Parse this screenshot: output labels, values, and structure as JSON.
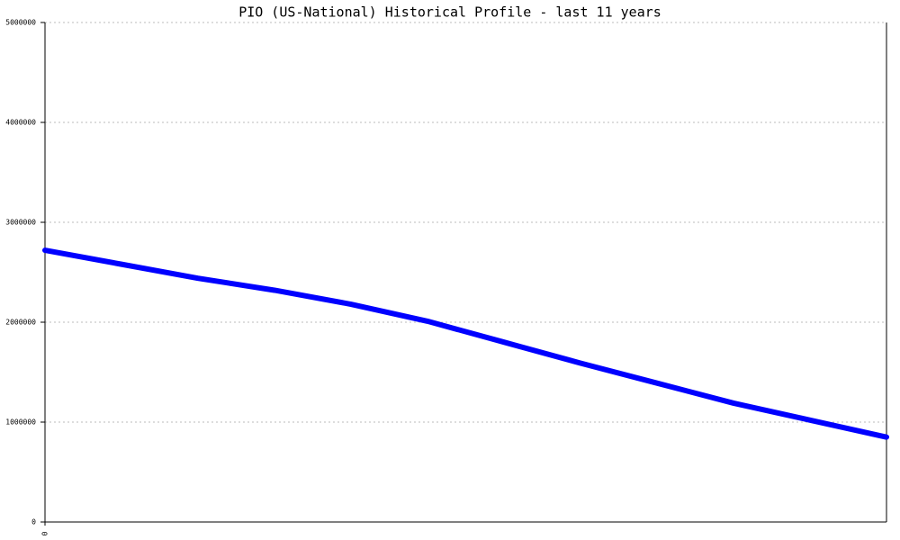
{
  "chart_data": {
    "type": "line",
    "title": "PIO (US-National) Historical Profile - last 11 years",
    "categories": [
      "0",
      null,
      null,
      null,
      null,
      null,
      null,
      null,
      null,
      null,
      null,
      null
    ],
    "series": [
      {
        "color": "#0000ff",
        "values": [
          2720000,
          2580000,
          2440000,
          2320000,
          2180000,
          2010000,
          1800000,
          1590000,
          1390000,
          1190000,
          1020000,
          850000
        ]
      }
    ],
    "ylim": [
      0,
      5000000
    ],
    "yticks": [
      0,
      1000000,
      2000000,
      3000000,
      4000000,
      5000000
    ],
    "grid": true
  }
}
